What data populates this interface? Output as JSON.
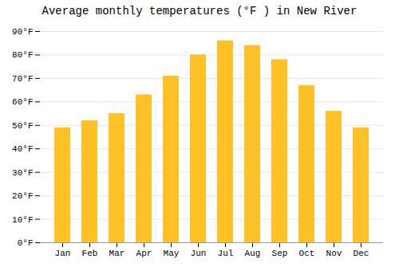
{
  "chart_data": {
    "type": "bar",
    "title": "Average monthly temperatures (°F ) in New River",
    "categories": [
      "Jan",
      "Feb",
      "Mar",
      "Apr",
      "May",
      "Jun",
      "Jul",
      "Aug",
      "Sep",
      "Oct",
      "Nov",
      "Dec"
    ],
    "values": [
      49,
      52,
      55,
      63,
      71,
      80,
      86,
      84,
      78,
      67,
      56,
      49
    ],
    "color": "#FFC125",
    "ylim": [
      0,
      90
    ],
    "yticks": [
      {
        "value": 0,
        "label": "0°F"
      },
      {
        "value": 10,
        "label": "10°F"
      },
      {
        "value": 20,
        "label": "20°F"
      },
      {
        "value": 30,
        "label": "30°F"
      },
      {
        "value": 40,
        "label": "40°F"
      },
      {
        "value": 50,
        "label": "50°F"
      },
      {
        "value": 60,
        "label": "60°F"
      },
      {
        "value": 70,
        "label": "70°F"
      },
      {
        "value": 80,
        "label": "80°F"
      },
      {
        "value": 90,
        "label": "90°F"
      }
    ],
    "grid": true
  }
}
